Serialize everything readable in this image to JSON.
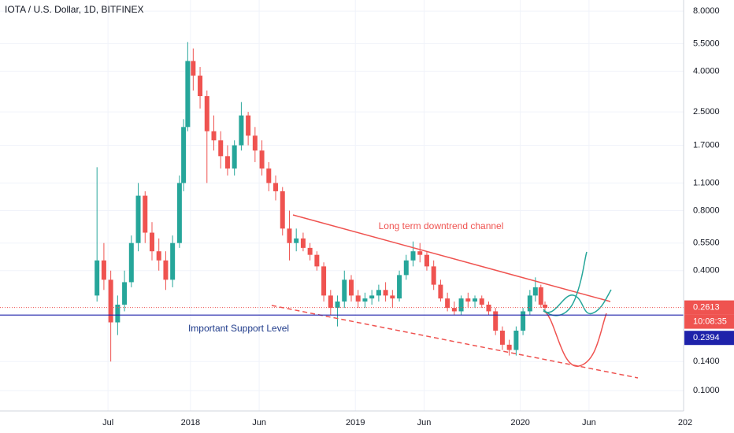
{
  "chart_data": {
    "type": "candlestick",
    "title": "IOTA / U.S. Dollar, 1D, BITFINEX",
    "log_scale": true,
    "grid": true,
    "up_color": "#26a69a",
    "down_color": "#ef5350",
    "xlim": [
      -1.86,
      48.0
    ],
    "xticks": [
      {
        "value": 6,
        "label": "Jul"
      },
      {
        "value": 12,
        "label": "2018"
      },
      {
        "value": 17,
        "label": "Jun"
      },
      {
        "value": 24,
        "label": "2019"
      },
      {
        "value": 29,
        "label": "Jun"
      },
      {
        "value": 36,
        "label": "2020"
      },
      {
        "value": 41,
        "label": "Jun"
      },
      {
        "value": 48,
        "label": "202"
      }
    ],
    "ylim": [
      0.077,
      9.1
    ],
    "yticks": [
      {
        "value": 8,
        "label": "8.0000"
      },
      {
        "value": 5.5,
        "label": "5.5000"
      },
      {
        "value": 4,
        "label": "4.0000"
      },
      {
        "value": 2.5,
        "label": "2.5000"
      },
      {
        "value": 1.7,
        "label": "1.7000"
      },
      {
        "value": 1.1,
        "label": "1.1000"
      },
      {
        "value": 0.8,
        "label": "0.8000"
      },
      {
        "value": 0.55,
        "label": "0.5500"
      },
      {
        "value": 0.4,
        "label": "0.4000"
      },
      {
        "value": 0.14,
        "label": "0.1400"
      },
      {
        "value": 0.1,
        "label": "0.1000"
      }
    ],
    "x": [
      5.2,
      5.7,
      6.2,
      6.7,
      7.2,
      7.7,
      8.2,
      8.7,
      9.2,
      9.7,
      10.2,
      10.7,
      11.2,
      11.5,
      11.8,
      12.2,
      12.7,
      13.2,
      13.7,
      14.2,
      14.7,
      15.2,
      15.7,
      16.2,
      16.7,
      17.2,
      17.7,
      18.2,
      18.7,
      19.2,
      19.7,
      20.2,
      20.7,
      21.2,
      21.7,
      22.2,
      22.7,
      23.2,
      23.7,
      24.2,
      24.7,
      25.2,
      25.7,
      26.2,
      26.7,
      27.2,
      27.7,
      28.2,
      28.7,
      29.2,
      29.7,
      30.2,
      30.7,
      31.2,
      31.7,
      32.2,
      32.7,
      33.2,
      33.7,
      34.2,
      34.7,
      35.2,
      35.7,
      36.2,
      36.7,
      37.1,
      37.5,
      37.8
    ],
    "open": [
      0.3,
      0.45,
      0.36,
      0.22,
      0.27,
      0.35,
      0.55,
      0.95,
      0.62,
      0.5,
      0.45,
      0.36,
      0.55,
      1.1,
      2.1,
      4.5,
      3.8,
      3.0,
      2.0,
      1.8,
      1.5,
      1.3,
      1.7,
      2.4,
      1.9,
      1.6,
      1.3,
      1.1,
      1.0,
      0.65,
      0.55,
      0.58,
      0.52,
      0.48,
      0.42,
      0.3,
      0.26,
      0.28,
      0.36,
      0.3,
      0.28,
      0.29,
      0.3,
      0.32,
      0.3,
      0.29,
      0.38,
      0.45,
      0.5,
      0.48,
      0.42,
      0.34,
      0.29,
      0.26,
      0.25,
      0.29,
      0.28,
      0.29,
      0.27,
      0.25,
      0.2,
      0.17,
      0.16,
      0.2,
      0.25,
      0.3,
      0.33,
      0.27
    ],
    "high": [
      1.32,
      0.55,
      0.4,
      0.3,
      0.4,
      0.6,
      1.1,
      1.0,
      0.7,
      0.58,
      0.5,
      0.6,
      1.2,
      2.3,
      5.6,
      5.2,
      4.2,
      3.2,
      2.4,
      2.0,
      1.7,
      1.8,
      2.8,
      2.5,
      2.1,
      1.8,
      1.4,
      1.2,
      1.05,
      0.8,
      0.65,
      0.62,
      0.55,
      0.5,
      0.44,
      0.32,
      0.3,
      0.4,
      0.38,
      0.32,
      0.31,
      0.32,
      0.34,
      0.35,
      0.32,
      0.4,
      0.48,
      0.56,
      0.55,
      0.5,
      0.45,
      0.36,
      0.31,
      0.28,
      0.3,
      0.31,
      0.3,
      0.3,
      0.28,
      0.26,
      0.21,
      0.18,
      0.21,
      0.26,
      0.32,
      0.37,
      0.34,
      0.28
    ],
    "low": [
      0.28,
      0.32,
      0.14,
      0.19,
      0.25,
      0.33,
      0.5,
      0.55,
      0.45,
      0.4,
      0.32,
      0.33,
      0.52,
      1.0,
      2.0,
      3.2,
      2.6,
      1.1,
      1.6,
      1.3,
      1.2,
      1.2,
      1.6,
      1.7,
      1.4,
      1.2,
      1.0,
      0.9,
      0.6,
      0.45,
      0.5,
      0.5,
      0.45,
      0.4,
      0.28,
      0.24,
      0.21,
      0.26,
      0.28,
      0.26,
      0.26,
      0.27,
      0.28,
      0.28,
      0.26,
      0.28,
      0.36,
      0.42,
      0.44,
      0.4,
      0.32,
      0.28,
      0.25,
      0.24,
      0.24,
      0.26,
      0.26,
      0.26,
      0.24,
      0.19,
      0.16,
      0.15,
      0.15,
      0.19,
      0.24,
      0.28,
      0.26,
      0.25
    ],
    "close": [
      0.45,
      0.36,
      0.22,
      0.27,
      0.35,
      0.55,
      0.95,
      0.62,
      0.5,
      0.45,
      0.36,
      0.55,
      1.1,
      2.1,
      4.5,
      3.8,
      3.0,
      2.0,
      1.8,
      1.5,
      1.3,
      1.7,
      2.4,
      1.9,
      1.6,
      1.3,
      1.1,
      1.0,
      0.65,
      0.55,
      0.58,
      0.52,
      0.48,
      0.42,
      0.3,
      0.26,
      0.28,
      0.36,
      0.3,
      0.28,
      0.29,
      0.3,
      0.32,
      0.3,
      0.29,
      0.38,
      0.45,
      0.5,
      0.48,
      0.42,
      0.34,
      0.29,
      0.26,
      0.25,
      0.29,
      0.28,
      0.29,
      0.27,
      0.25,
      0.2,
      0.17,
      0.16,
      0.2,
      0.25,
      0.3,
      0.33,
      0.27,
      0.26
    ],
    "last_price": 0.2613,
    "last_price_color": "#ef5350",
    "countdown": "10:08:35",
    "support_level": 0.2394,
    "support_color": "#1e22aa",
    "annotations": [
      "Long term downtrend channel",
      "Important Support Level"
    ]
  }
}
